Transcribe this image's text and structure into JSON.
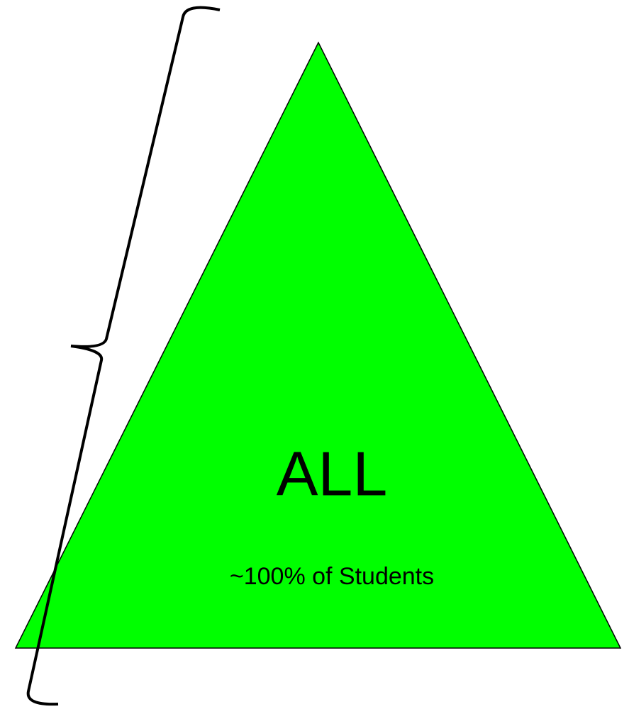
{
  "diagram": {
    "title": "ALL",
    "subtitle": "~100% of Students"
  }
}
